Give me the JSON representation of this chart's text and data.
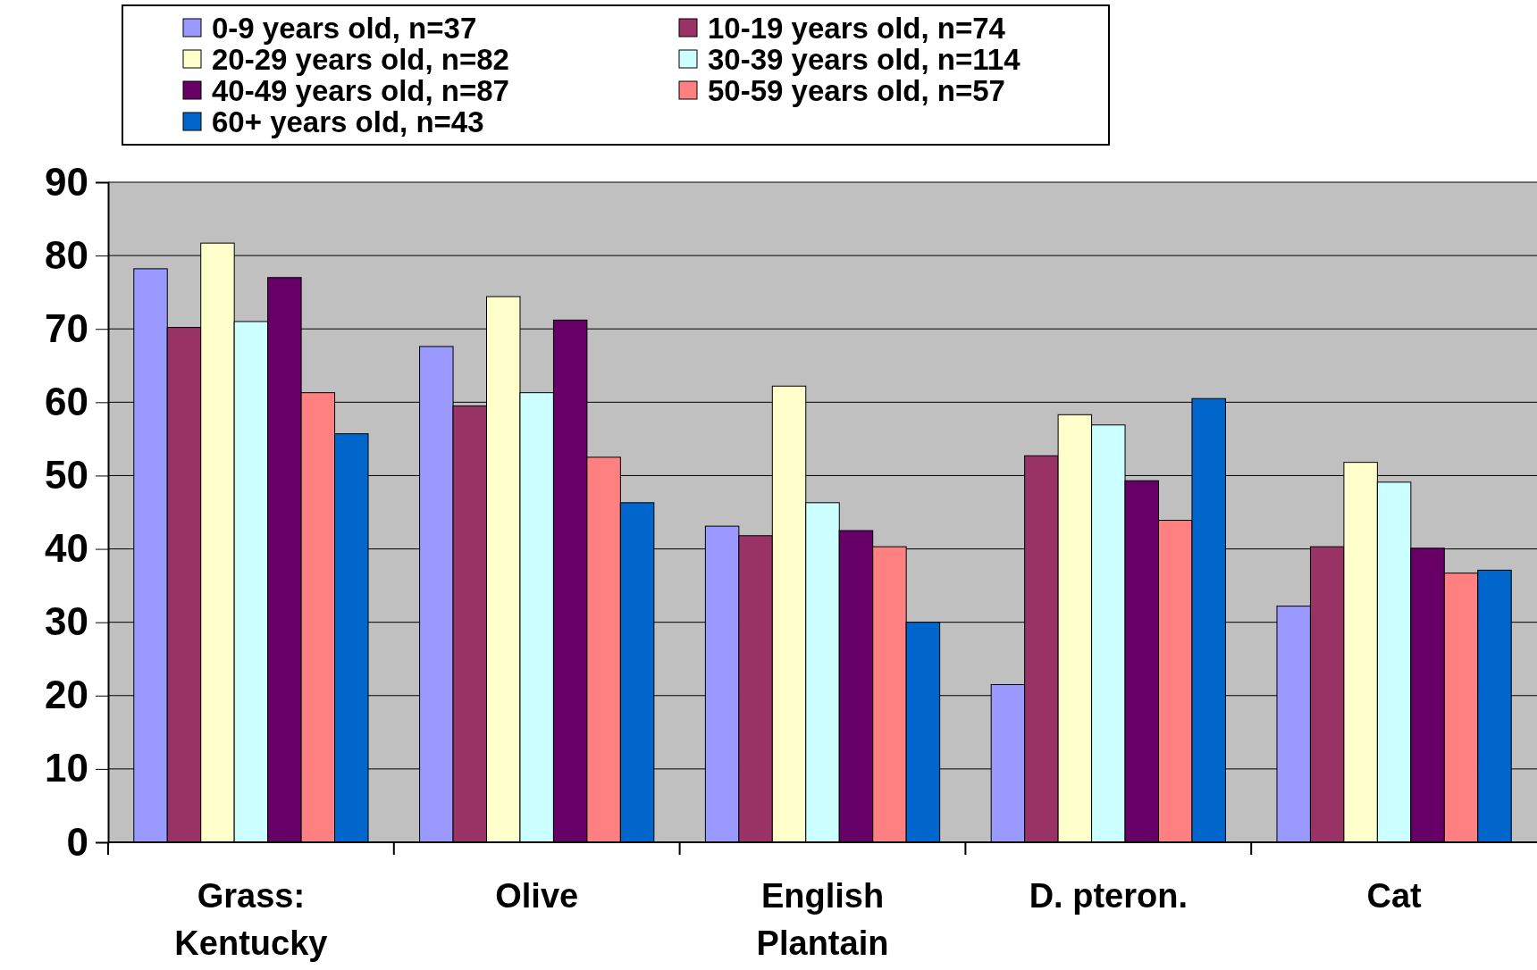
{
  "chart_data": {
    "type": "bar",
    "categories": [
      "Grass: Kentucky",
      "Olive",
      "English Plantain",
      "D. pteron.",
      "Cat"
    ],
    "series": [
      {
        "name": "0-9 years old, n=37",
        "color": "#9999ff",
        "values": [
          78.2,
          67.6,
          43.1,
          21.5,
          32.2
        ]
      },
      {
        "name": "10-19 years old, n=74",
        "color": "#993366",
        "values": [
          70.2,
          59.5,
          41.8,
          52.7,
          40.3
        ]
      },
      {
        "name": "20-29 years old, n=82",
        "color": "#ffffcc",
        "values": [
          81.7,
          74.4,
          62.2,
          58.3,
          51.8
        ]
      },
      {
        "name": "30-39 years old, n=114",
        "color": "#ccffff",
        "values": [
          71.0,
          61.3,
          46.3,
          56.9,
          49.1
        ]
      },
      {
        "name": "40-49 years old, n=87",
        "color": "#660066",
        "values": [
          77.0,
          71.2,
          42.5,
          49.3,
          40.1
        ]
      },
      {
        "name": "50-59 years old, n=57",
        "color": "#ff8080",
        "values": [
          61.3,
          52.5,
          40.3,
          43.9,
          36.7
        ]
      },
      {
        "name": "60+ years old, n=43",
        "color": "#0066cc",
        "values": [
          55.7,
          46.3,
          30.0,
          60.5,
          37.1
        ]
      }
    ],
    "ylim": [
      0,
      90
    ],
    "yticks": [
      0,
      10,
      20,
      30,
      40,
      50,
      60,
      70,
      80,
      90
    ],
    "grid": "y",
    "legend": "top"
  }
}
